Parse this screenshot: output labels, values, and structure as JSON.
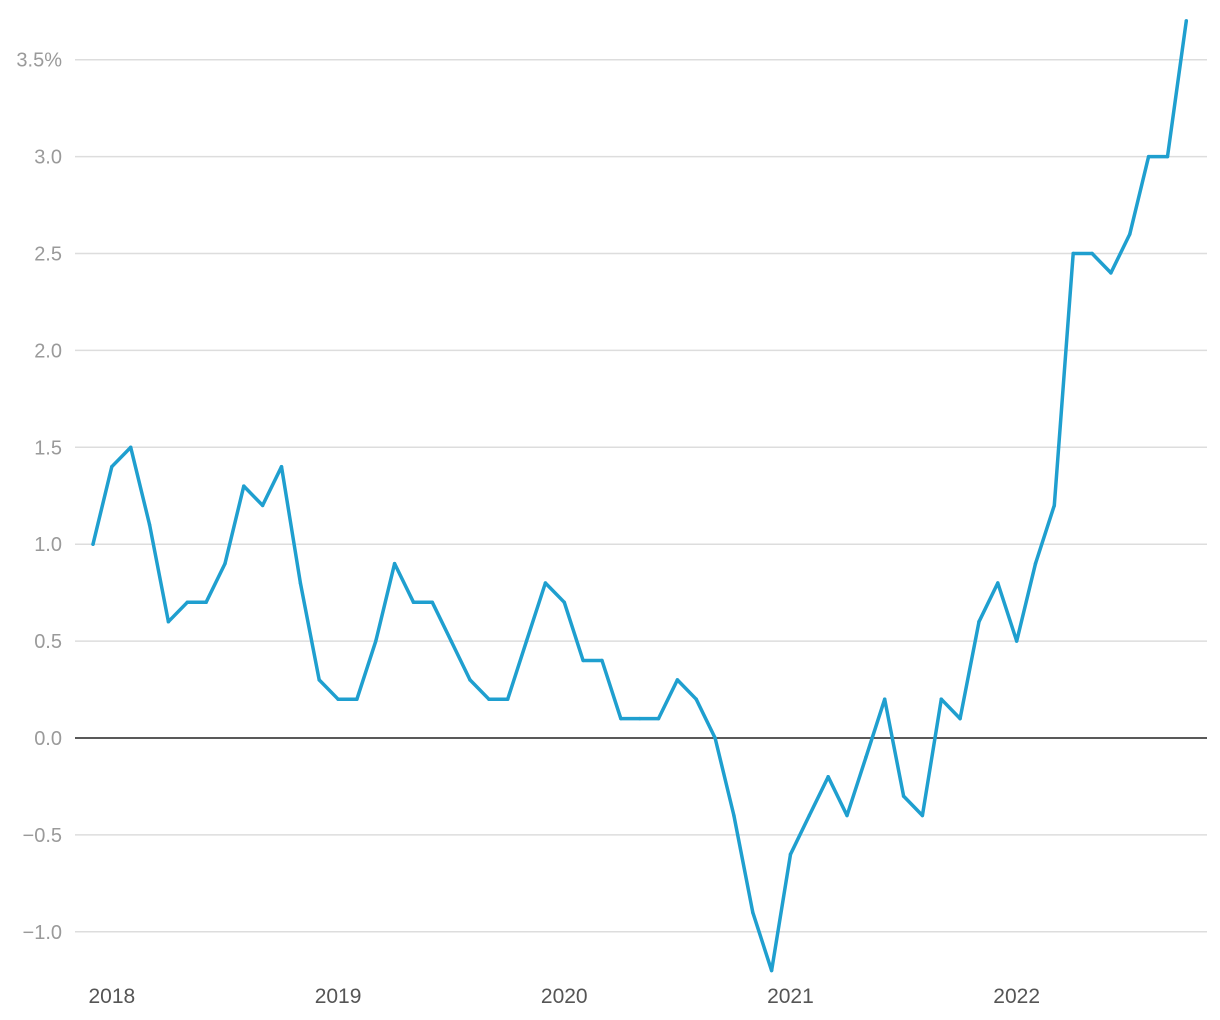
{
  "chart_data": {
    "type": "line",
    "title": "",
    "xlabel": "",
    "ylabel": "",
    "ylim": [
      -1.2,
      3.7
    ],
    "y_ticks": [
      {
        "value": 3.5,
        "label": "3.5%"
      },
      {
        "value": 3.0,
        "label": "3.0"
      },
      {
        "value": 2.5,
        "label": "2.5"
      },
      {
        "value": 2.0,
        "label": "2.0"
      },
      {
        "value": 1.5,
        "label": "1.5"
      },
      {
        "value": 1.0,
        "label": "1.0"
      },
      {
        "value": 0.5,
        "label": "0.5"
      },
      {
        "value": 0.0,
        "label": "0.0"
      },
      {
        "value": -0.5,
        "label": "−0.5"
      },
      {
        "value": -1.0,
        "label": "−1.0"
      }
    ],
    "x_ticks": [
      "2018",
      "2019",
      "2020",
      "2021",
      "2022"
    ],
    "x_start": "2017-12",
    "grid": true,
    "legend": "none",
    "series": [
      {
        "color": "#1f9fcf",
        "values": [
          1.0,
          1.4,
          1.5,
          1.1,
          0.6,
          0.7,
          0.7,
          0.9,
          1.3,
          1.2,
          1.4,
          0.8,
          0.3,
          0.2,
          0.2,
          0.5,
          0.9,
          0.7,
          0.7,
          0.5,
          0.3,
          0.2,
          0.2,
          0.5,
          0.8,
          0.7,
          0.4,
          0.4,
          0.1,
          0.1,
          0.1,
          0.3,
          0.2,
          0.0,
          -0.4,
          -0.9,
          -1.2,
          -0.6,
          -0.4,
          -0.2,
          -0.4,
          -0.1,
          0.2,
          -0.3,
          -0.4,
          0.2,
          0.1,
          0.6,
          0.8,
          0.5,
          0.9,
          1.2,
          2.5,
          2.5,
          2.4,
          2.6,
          3.0,
          3.0,
          3.7
        ]
      }
    ]
  }
}
